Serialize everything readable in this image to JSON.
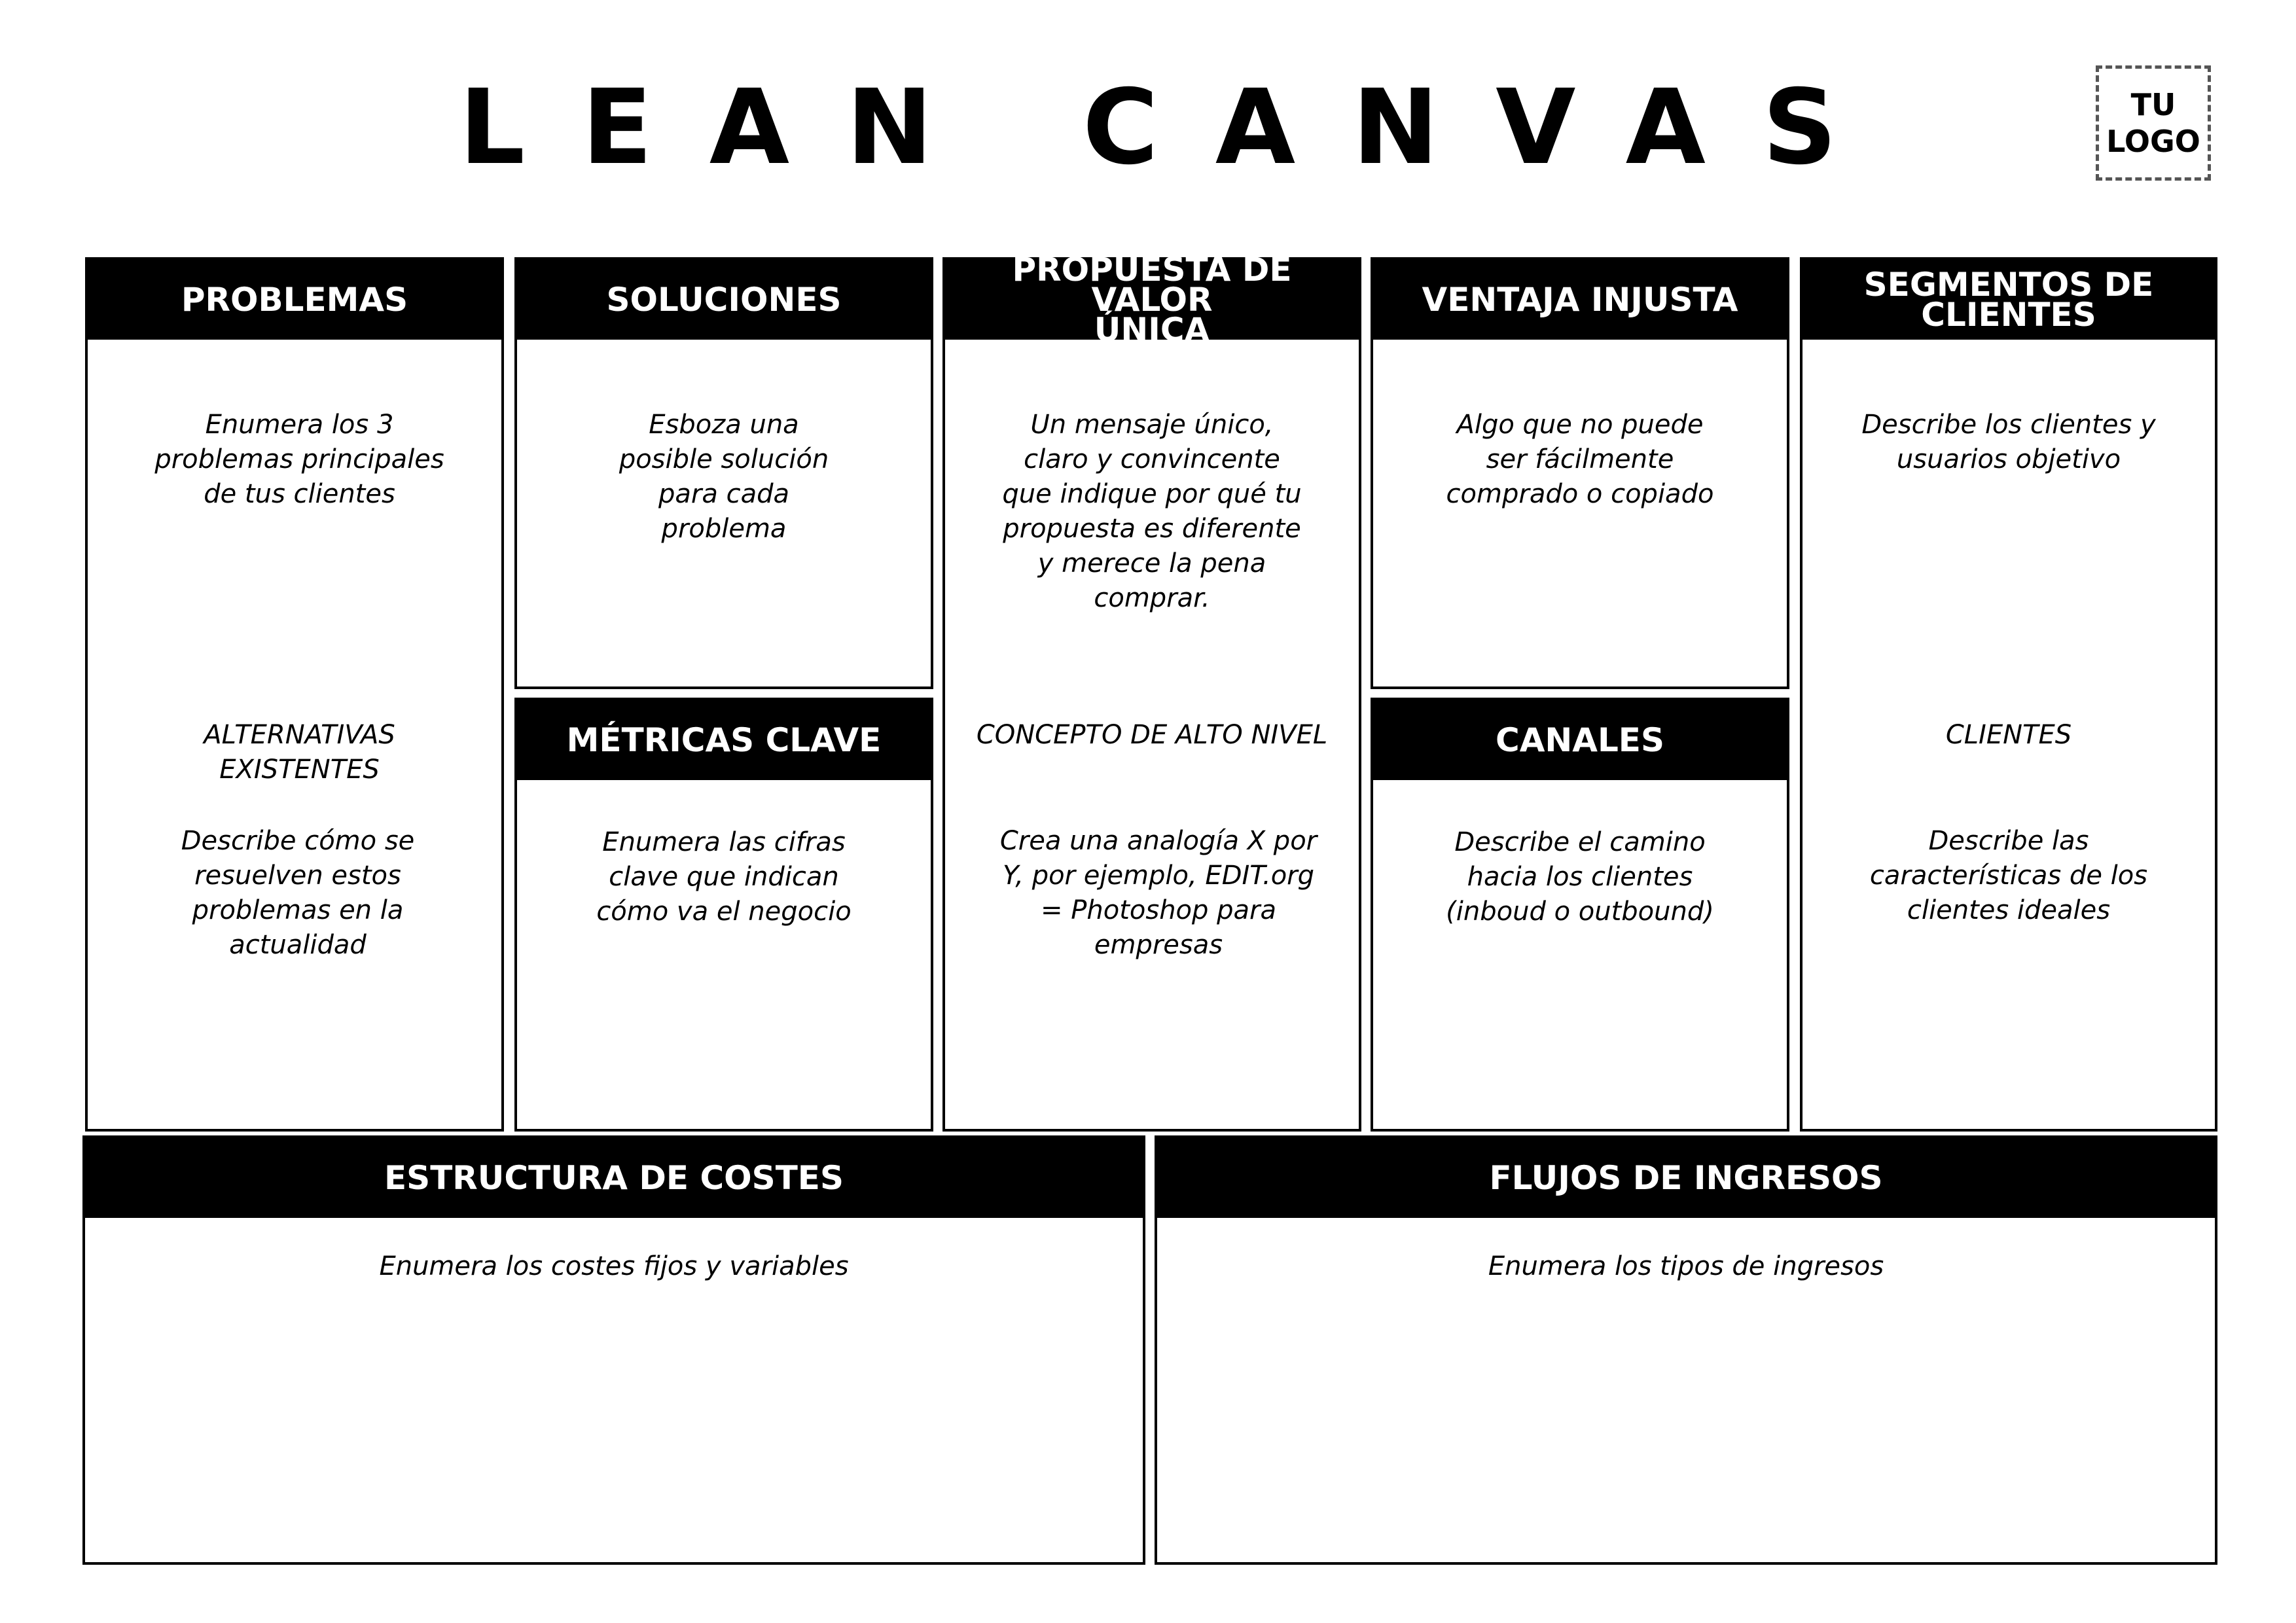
{
  "title": "LEAN CANVAS",
  "logo": {
    "line1": "TU",
    "line2": "LOGO"
  },
  "problemas": {
    "header": "PROBLEMAS",
    "desc": "Enumera los 3 problemas principales de tus clientes",
    "alt_title": "ALTERNATIVAS EXISTENTES",
    "alt_desc": "Describe cómo se resuelven estos problemas en la actualidad"
  },
  "soluciones": {
    "header": "SOLUCIONES",
    "desc": "Esboza una posible solución para cada problema"
  },
  "metricas": {
    "header": "MÉTRICAS CLAVE",
    "desc": "Enumera las cifras clave que indican cómo va el negocio"
  },
  "propuesta": {
    "header_line1": "PROPUESTA DE VALOR",
    "header_line2": "ÚNICA",
    "desc": "Un mensaje único, claro y convincente que indique por qué tu propuesta es diferente y merece la pena comprar.",
    "concept_title": "CONCEPTO DE ALTO NIVEL",
    "concept_desc": "Crea una analogía X por Y, por ejemplo, EDIT.org = Photoshop para empresas"
  },
  "ventaja": {
    "header": "VENTAJA INJUSTA",
    "desc": "Algo que no puede ser fácilmente comprado o copiado"
  },
  "canales": {
    "header": "CANALES",
    "desc": "Describe el camino hacia los clientes  (inboud o outbound)"
  },
  "segmentos": {
    "header_line1": "SEGMENTOS DE",
    "header_line2": "CLIENTES",
    "desc": "Describe los clientes y usuarios objetivo",
    "clientes_title": "CLIENTES",
    "clientes_desc": "Describe las características de los clientes ideales"
  },
  "costes": {
    "header": "ESTRUCTURA DE COSTES",
    "desc": "Enumera los costes fijos y variables"
  },
  "ingresos": {
    "header": "FLUJOS DE INGRESOS",
    "desc": "Enumera los tipos de ingresos"
  }
}
